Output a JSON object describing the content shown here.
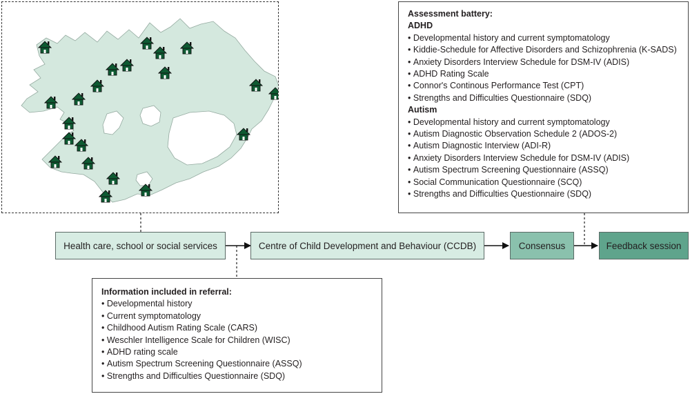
{
  "map": {
    "icon": "house-icon",
    "land_color": "#d4e8de",
    "house_color": "#0e5a32",
    "house_count": 21
  },
  "flow": {
    "step1": "Health care, school or social services",
    "step2": "Centre of Child Development and Behaviour (CCDB)",
    "step3": "Consensus",
    "step4": "Feedback session"
  },
  "referral": {
    "title": "Information included in referral:",
    "items": [
      "Developmental history",
      "Current symptomatology",
      "Childhood Autism Rating Scale (CARS)",
      "Weschler Intelligence Scale for Children (WISC)",
      "ADHD rating scale",
      "Autism Spectrum Screening Questionnaire (ASSQ)",
      "Strengths and Difficulties Questionnaire (SDQ)"
    ]
  },
  "battery": {
    "title": "Assessment battery:",
    "adhd_label": "ADHD",
    "adhd_items": [
      "Developmental history and current symptomatology",
      "Kiddie-Schedule for Affective Disorders and Schizophrenia (K-SADS)",
      "Anxiety Disorders Interview Schedule for DSM-IV (ADIS)",
      "ADHD Rating Scale",
      "Connor's Continous Performance Test (CPT)",
      "Strengths and Difficulties Questionnaire (SDQ)"
    ],
    "autism_label": "Autism",
    "autism_items": [
      "Developmental history and current symptomatology",
      "Autism Diagnostic Observation Schedule 2 (ADOS-2)",
      "Autism Diagnostic Interview (ADI-R)",
      "Anxiety Disorders Interview Schedule for DSM-IV (ADIS)",
      "Autism Spectrum Screening Questionnaire (ASSQ)",
      "Social Communication Questionnaire (SCQ)",
      "Strengths and Difficulties Questionnaire (SDQ)"
    ]
  }
}
